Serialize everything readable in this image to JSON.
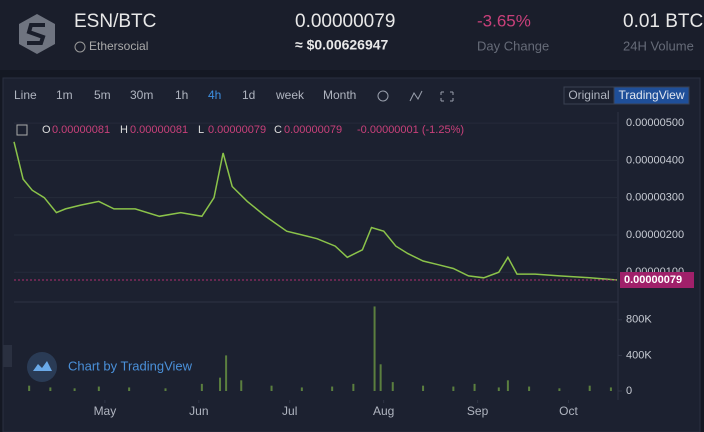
{
  "header": {
    "pair": "ESN/BTC",
    "name": "Ethersocial",
    "price": "0.00000079",
    "price_usd": "≈ $0.00626947",
    "change": "-3.65%",
    "change_label": "Day Change",
    "volume": "0.01 BTC",
    "volume_label": "24H Volume"
  },
  "toolbar": {
    "intervals": [
      "Line",
      "1m",
      "5m",
      "30m",
      "1h",
      "4h",
      "1d",
      "week",
      "Month"
    ],
    "active": "4h",
    "views": [
      "Original",
      "TradingView"
    ],
    "active_view": "TradingView"
  },
  "chart": {
    "legend": {
      "o_label": "O",
      "o": "0.00000081",
      "h_label": "H",
      "h": "0.00000081",
      "l_label": "L",
      "l": "0.00000079",
      "c_label": "C",
      "c": "0.00000079",
      "change": "-0.00000001 (-1.25%)"
    },
    "current_price": {
      "value": 7.9e-07,
      "label": "0.00000079"
    },
    "watermark": "Chart by TradingView",
    "price": {
      "type": "line",
      "color": "#8bc34a",
      "x": [
        0,
        3,
        6,
        10,
        14,
        17,
        22,
        28,
        33,
        40,
        48,
        55,
        62,
        66,
        69,
        72,
        77,
        83,
        90,
        95,
        100,
        106,
        110,
        115,
        118,
        122,
        126,
        130,
        135,
        140,
        145,
        150,
        155,
        160,
        163,
        166,
        172,
        180,
        190,
        199
      ],
      "values": [
        4.5e-06,
        3.5e-06,
        3.2e-06,
        3e-06,
        2.6e-06,
        2.7e-06,
        2.8e-06,
        2.9e-06,
        2.7e-06,
        2.7e-06,
        2.5e-06,
        2.6e-06,
        2.5e-06,
        3e-06,
        4.2e-06,
        3.3e-06,
        2.9e-06,
        2.5e-06,
        2.1e-06,
        2e-06,
        1.9e-06,
        1.7e-06,
        1.4e-06,
        1.6e-06,
        2.2e-06,
        2.1e-06,
        1.7e-06,
        1.5e-06,
        1.3e-06,
        1.2e-06,
        1.1e-06,
        9e-07,
        8.5e-07,
        1e-06,
        1.4e-06,
        9.5e-07,
        9.5e-07,
        9e-07,
        8.5e-07,
        7.9e-07
      ],
      "xlim": [
        0,
        200
      ],
      "xticks": [
        {
          "value": 30,
          "label": "May"
        },
        {
          "value": 61,
          "label": "Jun"
        },
        {
          "value": 91,
          "label": "Jul"
        },
        {
          "value": 122,
          "label": "Aug"
        },
        {
          "value": 153,
          "label": "Sep"
        },
        {
          "value": 183,
          "label": "Oct"
        }
      ],
      "ylim": [
        2e-07,
        5.3e-06
      ],
      "yticks": [
        {
          "value": 1e-06,
          "label": "0.00000100"
        },
        {
          "value": 2e-06,
          "label": "0.00000200"
        },
        {
          "value": 3e-06,
          "label": "0.00000300"
        },
        {
          "value": 4e-06,
          "label": "0.00000400"
        },
        {
          "value": 5e-06,
          "label": "0.00000500"
        }
      ],
      "grid": true
    },
    "volume": {
      "type": "bar",
      "color": "#5b7f3f",
      "x": [
        5,
        12,
        20,
        28,
        38,
        50,
        62,
        68,
        70,
        75,
        85,
        95,
        105,
        112,
        119,
        121,
        125,
        135,
        145,
        152,
        160,
        163,
        170,
        180,
        190,
        197
      ],
      "values": [
        60000,
        40000,
        30000,
        50000,
        40000,
        30000,
        80000,
        150000,
        400000,
        120000,
        60000,
        40000,
        50000,
        80000,
        950000,
        300000,
        100000,
        60000,
        50000,
        80000,
        40000,
        120000,
        50000,
        30000,
        60000,
        40000
      ],
      "ylim": [
        0,
        1000000
      ],
      "yticks": [
        0,
        {
          "value": 400000,
          "label": "400K"
        },
        {
          "value": 800000,
          "label": "800K"
        }
      ]
    }
  }
}
